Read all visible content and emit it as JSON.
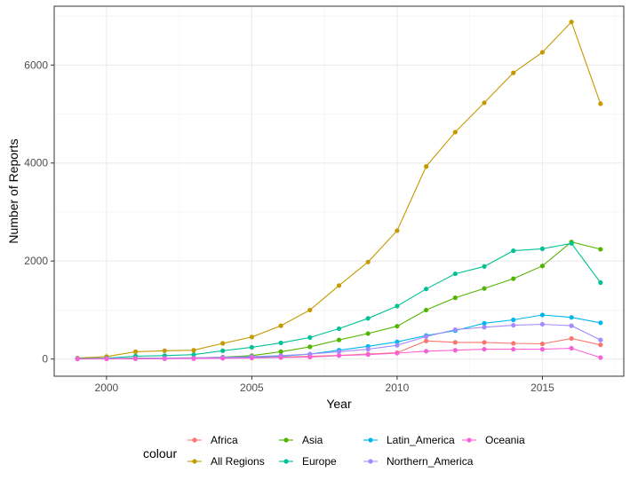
{
  "chart_data": {
    "type": "line",
    "xlabel": "Year",
    "ylabel": "Number of Reports",
    "xlim": [
      1998.2,
      2017.8
    ],
    "ylim": [
      -350,
      7200
    ],
    "x_ticks": [
      2000,
      2005,
      2010,
      2015
    ],
    "x_tick_labels": [
      "2000",
      "2005",
      "2010",
      "2015"
    ],
    "y_ticks": [
      0,
      2000,
      4000,
      6000
    ],
    "y_tick_labels": [
      "0",
      "2000",
      "4000",
      "6000"
    ],
    "grid": true,
    "legend": {
      "title": "colour",
      "position": "bottom"
    },
    "x": [
      1999,
      2000,
      2001,
      2002,
      2003,
      2004,
      2005,
      2006,
      2007,
      2008,
      2009,
      2010,
      2011,
      2012,
      2013,
      2014,
      2015,
      2016,
      2017
    ],
    "series": [
      {
        "name": "Africa",
        "color": "#F8766D",
        "values": [
          5,
          8,
          10,
          12,
          15,
          20,
          30,
          40,
          55,
          75,
          100,
          130,
          370,
          340,
          340,
          320,
          310,
          420,
          290
        ]
      },
      {
        "name": "All Regions",
        "color": "#C49A00",
        "values": [
          20,
          50,
          150,
          170,
          180,
          320,
          450,
          680,
          1000,
          1500,
          1980,
          2620,
          3930,
          4630,
          5230,
          5840,
          6260,
          6880,
          5210
        ]
      },
      {
        "name": "Asia",
        "color": "#53B400",
        "values": [
          5,
          10,
          20,
          20,
          25,
          40,
          70,
          150,
          250,
          390,
          520,
          670,
          1000,
          1250,
          1440,
          1640,
          1900,
          2390,
          2240
        ]
      },
      {
        "name": "Europe",
        "color": "#00C094",
        "values": [
          10,
          20,
          60,
          70,
          90,
          170,
          240,
          330,
          440,
          620,
          830,
          1080,
          1430,
          1740,
          1890,
          2210,
          2250,
          2360,
          1560
        ]
      },
      {
        "name": "Latin_America",
        "color": "#00B6EB",
        "values": [
          2,
          5,
          10,
          10,
          15,
          25,
          40,
          60,
          100,
          180,
          260,
          350,
          480,
          580,
          730,
          800,
          900,
          850,
          740
        ]
      },
      {
        "name": "Northern_America",
        "color": "#A58AFF",
        "values": [
          5,
          10,
          15,
          20,
          25,
          35,
          50,
          70,
          100,
          150,
          200,
          280,
          460,
          600,
          650,
          690,
          710,
          680,
          390
        ]
      },
      {
        "name": "Oceania",
        "color": "#FB61D7",
        "values": [
          2,
          5,
          5,
          8,
          10,
          15,
          20,
          30,
          40,
          70,
          90,
          120,
          160,
          180,
          200,
          200,
          200,
          220,
          30
        ]
      }
    ]
  }
}
